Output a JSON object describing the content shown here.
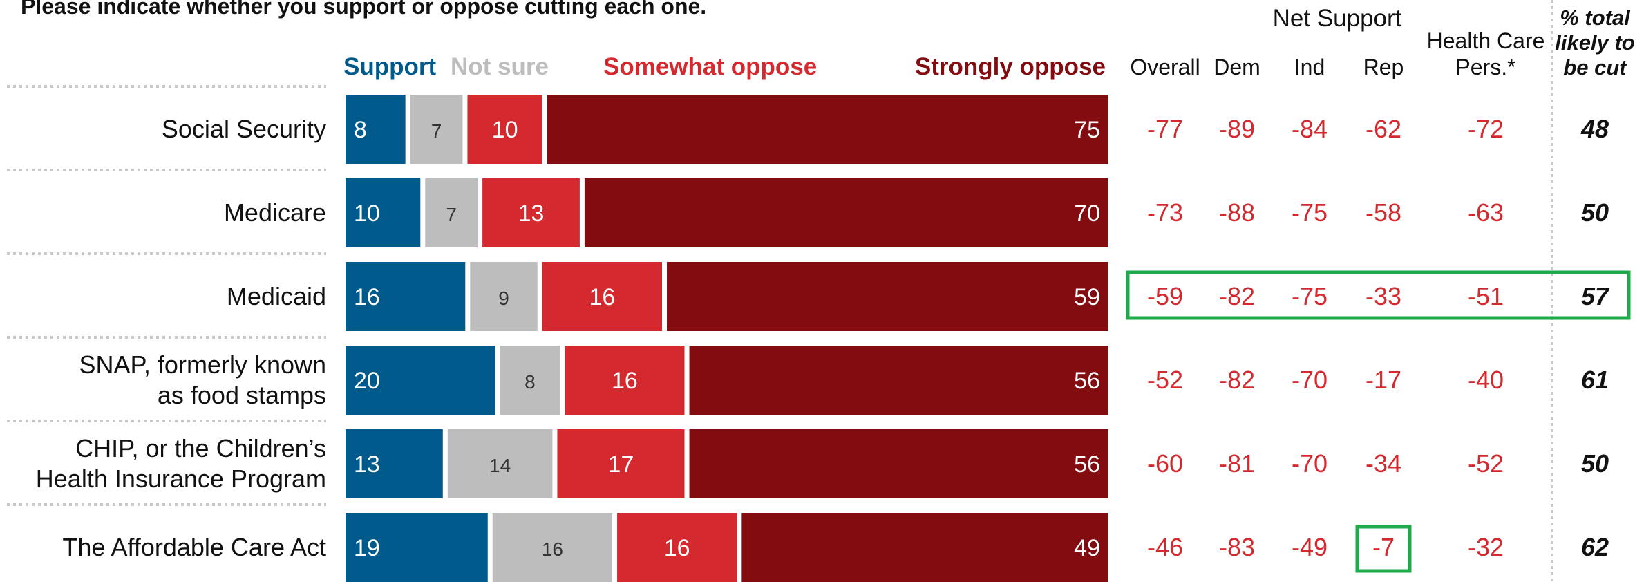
{
  "question": "Please indicate whether you support or oppose cutting each one.",
  "colors": {
    "support": "#005a8c",
    "not_sure": "#bdbdbd",
    "somewhat_oppose": "#d42a2f",
    "strongly_oppose": "#830c10",
    "net_text": "#d42a2f",
    "highlight": "#1faa4b",
    "divider": "#c8c8c8"
  },
  "chart_data": {
    "type": "bar",
    "orientation": "horizontal-stacked",
    "categories": [
      "Social Security",
      "Medicare",
      "Medicaid",
      "SNAP, formerly known as food stamps",
      "CHIP, or the Children’s Health Insurance Program",
      "The Affordable Care Act"
    ],
    "category_lines": [
      [
        "Social Security"
      ],
      [
        "Medicare"
      ],
      [
        "Medicaid"
      ],
      [
        "SNAP, formerly known",
        "as food stamps"
      ],
      [
        "CHIP, or the Children’s",
        "Health Insurance Program"
      ],
      [
        "The Affordable Care Act"
      ]
    ],
    "series": [
      {
        "name": "Support",
        "values": [
          8,
          10,
          16,
          20,
          13,
          19
        ]
      },
      {
        "name": "Not sure",
        "values": [
          7,
          7,
          9,
          8,
          14,
          16
        ]
      },
      {
        "name": "Somewhat oppose",
        "values": [
          10,
          13,
          16,
          16,
          17,
          16
        ]
      },
      {
        "name": "Strongly oppose",
        "values": [
          75,
          70,
          59,
          56,
          56,
          49
        ]
      }
    ],
    "net_support": {
      "heading": "Net Support",
      "columns": [
        "Overall",
        "Dem",
        "Ind",
        "Rep",
        "Health Care Pers.*"
      ],
      "column_lines": [
        [
          "Overall"
        ],
        [
          "Dem"
        ],
        [
          "Ind"
        ],
        [
          "Rep"
        ],
        [
          "Health Care",
          "Pers.*"
        ]
      ],
      "values": [
        [
          -77,
          -89,
          -84,
          -62,
          -72
        ],
        [
          -73,
          -88,
          -75,
          -58,
          -63
        ],
        [
          -59,
          -82,
          -75,
          -33,
          -51
        ],
        [
          -52,
          -82,
          -70,
          -17,
          -40
        ],
        [
          -60,
          -81,
          -70,
          -34,
          -52
        ],
        [
          -46,
          -83,
          -49,
          -7,
          -32
        ]
      ]
    },
    "likely_cut": {
      "heading_lines": [
        "% total",
        "likely to",
        "be cut"
      ],
      "values": [
        48,
        50,
        57,
        61,
        50,
        62
      ]
    },
    "highlights": {
      "row": "Medicaid",
      "cell": {
        "row": "The Affordable Care Act",
        "column": "Rep"
      }
    },
    "legend_placement": "top",
    "xlim": [
      0,
      100
    ]
  }
}
